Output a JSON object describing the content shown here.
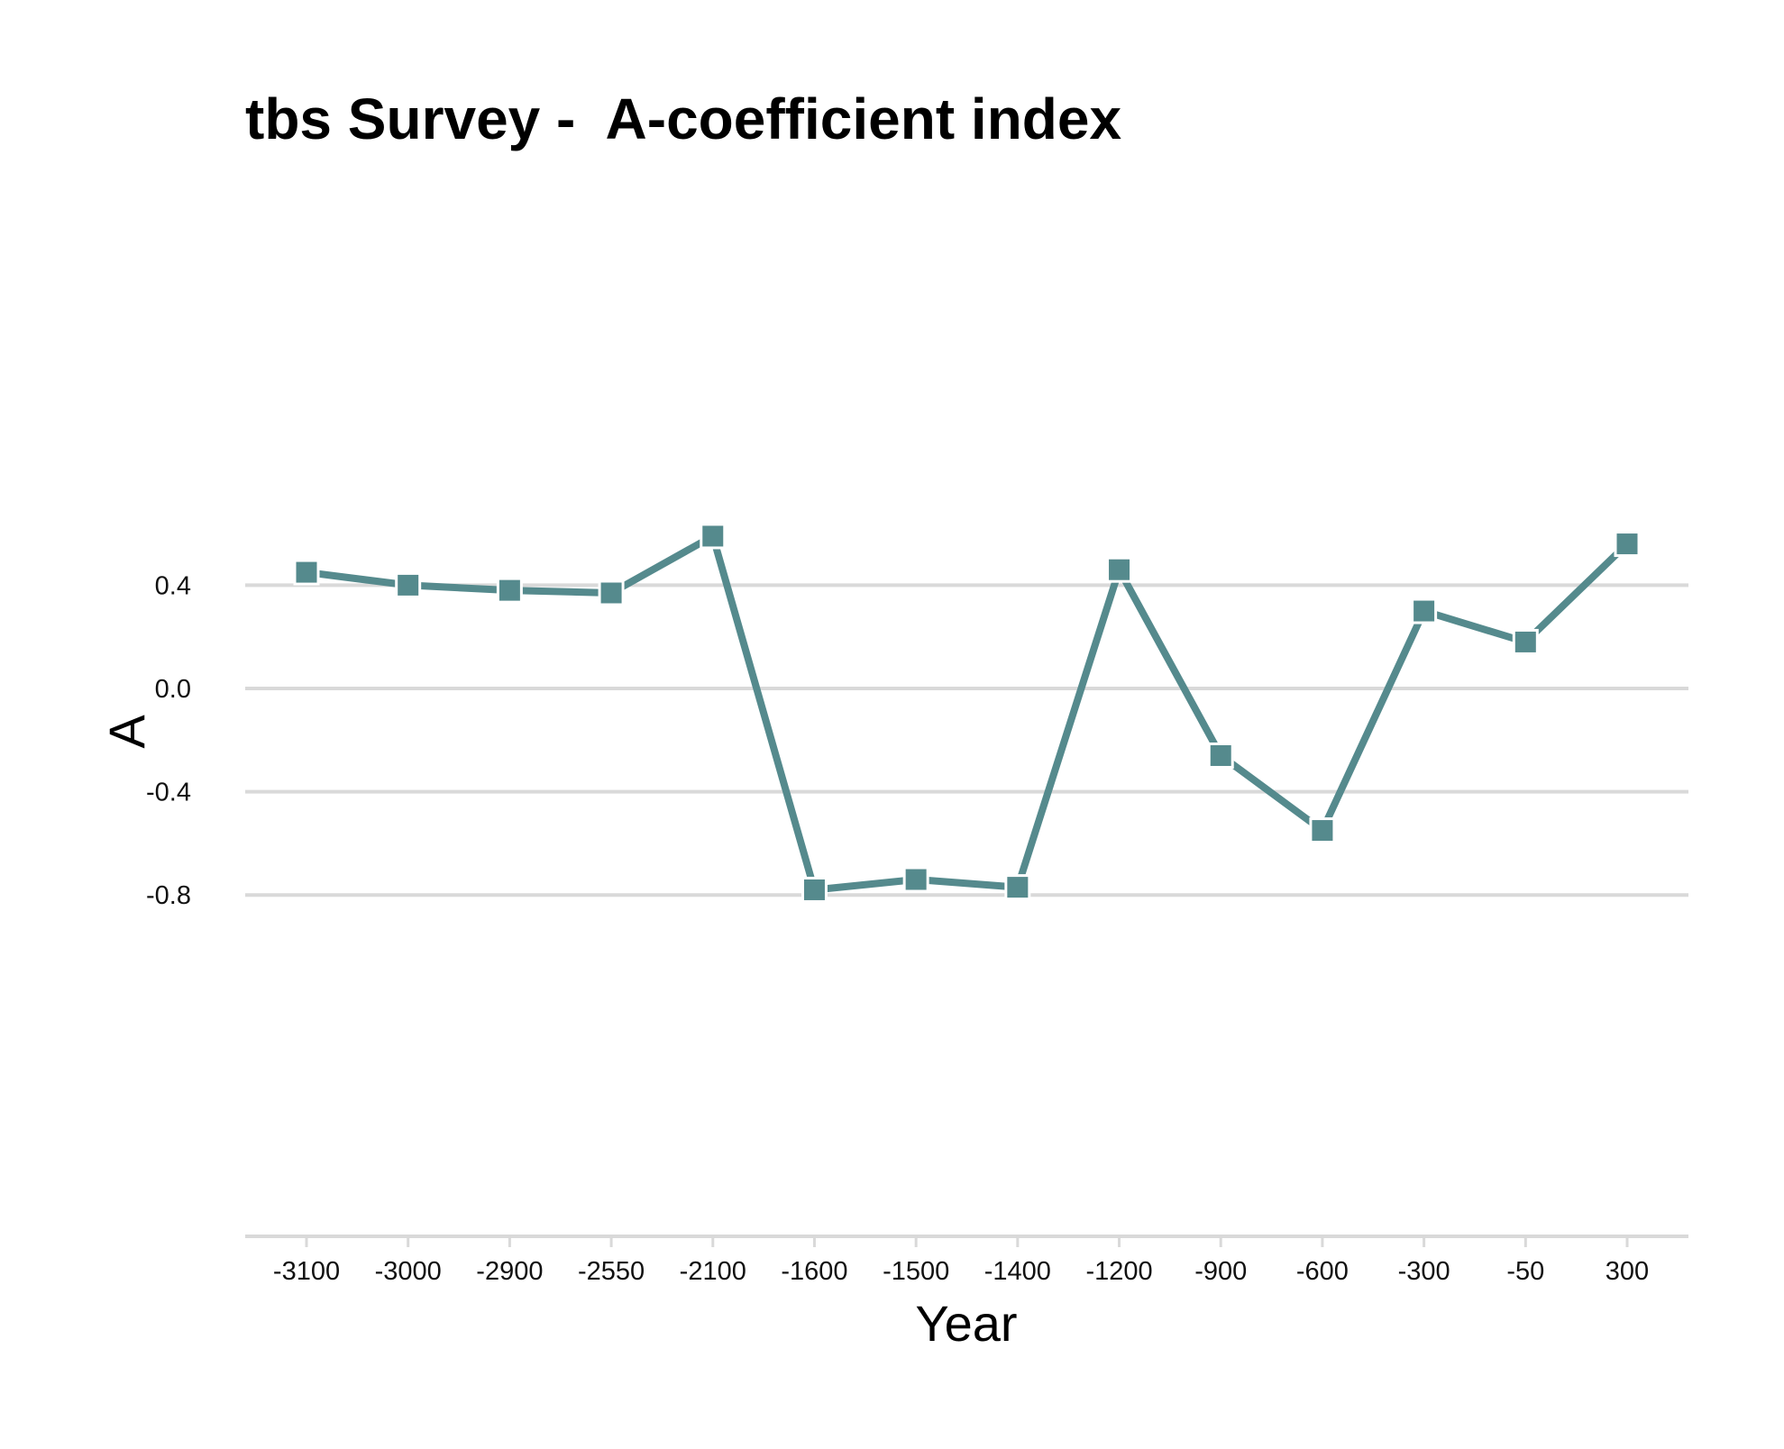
{
  "chart_data": {
    "type": "line",
    "title": "tbs Survey -  A-coefficient index",
    "xlabel": "Year",
    "ylabel": "A",
    "categories": [
      "-3100",
      "-3000",
      "-2900",
      "-2550",
      "-2100",
      "-1600",
      "-1500",
      "-1400",
      "-1200",
      "-900",
      "-600",
      "-300",
      "-50",
      "300"
    ],
    "series": [
      {
        "values": [
          0.45,
          0.4,
          0.38,
          0.37,
          0.59,
          -0.78,
          -0.74,
          -0.77,
          0.46,
          -0.26,
          -0.55,
          0.3,
          0.18,
          0.56
        ]
      }
    ],
    "yticks": [
      "0.4",
      "0.0",
      "-0.4",
      "-0.8"
    ],
    "ylim": [
      -0.85,
      0.65
    ],
    "grid": "horizontal",
    "marker": "square",
    "colors": {
      "line": "#558a8d",
      "grid": "#d9d9d9",
      "axis": "#d9d9d9"
    }
  }
}
